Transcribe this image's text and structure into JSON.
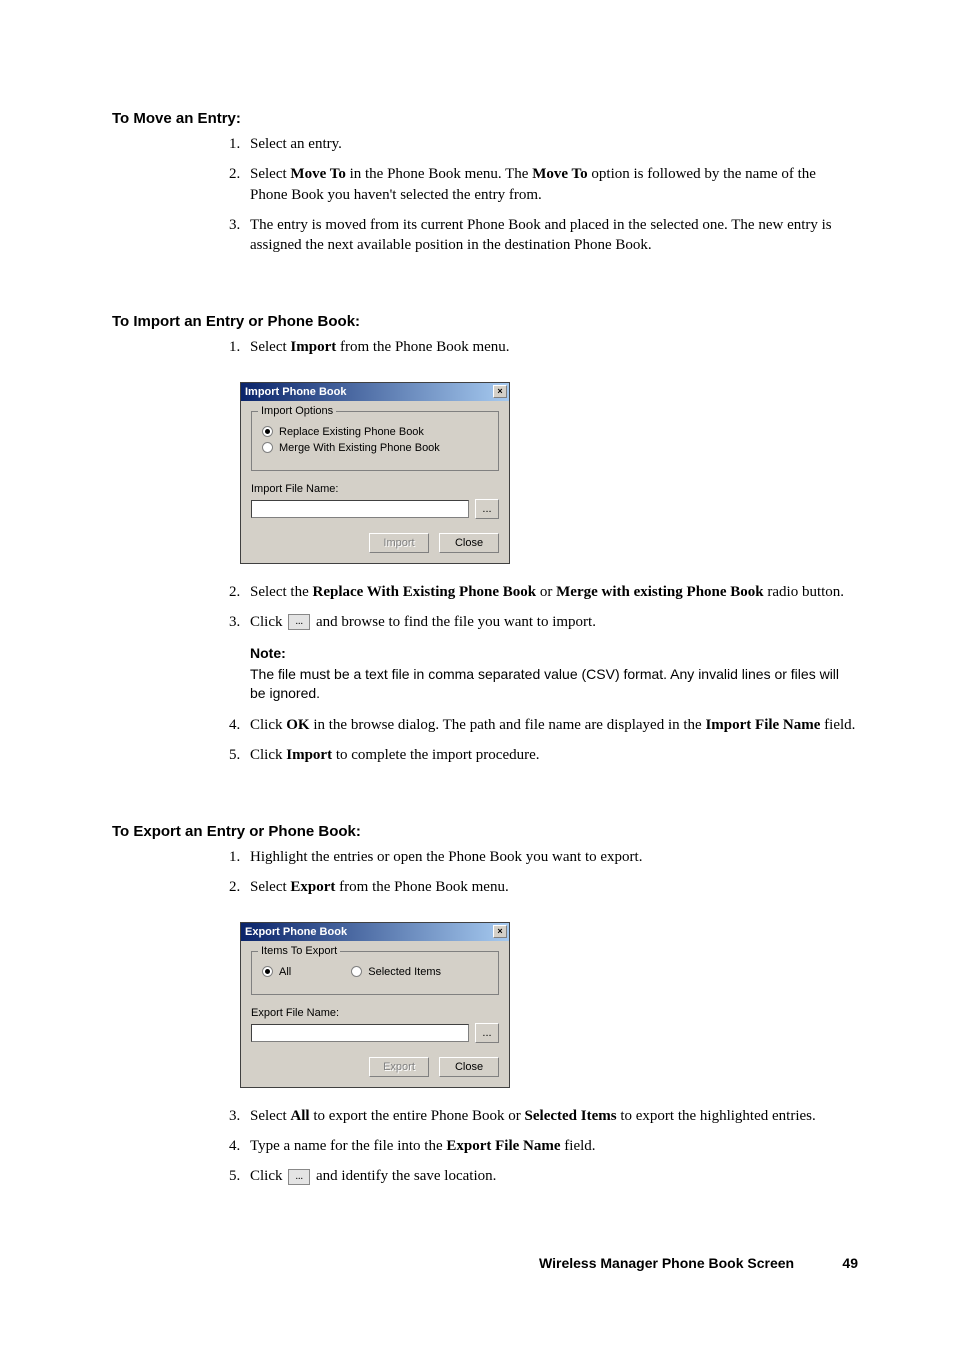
{
  "sections": {
    "move": {
      "heading": "To Move an Entry:",
      "step1": "Select an entry.",
      "step2_pre": "Select ",
      "step2_bold1": "Move To",
      "step2_mid": " in the Phone Book menu. The ",
      "step2_bold2": "Move To",
      "step2_post": " option is followed by the name of the Phone Book you haven't selected the entry from.",
      "step3": "The entry is moved from its current Phone Book and placed in the selected one. The new entry is assigned the next available position in the destination Phone Book."
    },
    "import": {
      "heading": "To Import an Entry or Phone Book:",
      "step1_pre": "Select ",
      "step1_bold": "Import",
      "step1_post": " from the Phone Book menu.",
      "step2_pre": "Select the ",
      "step2_bold1": "Replace With Existing Phone Book",
      "step2_mid": " or ",
      "step2_bold2": "Merge with existing Phone Book",
      "step2_post": " radio button.",
      "step3_pre": "Click ",
      "step3_btn": "...",
      "step3_post": " and browse to find the file you want to import.",
      "note_title": "Note:",
      "note_text": "The file must be a text file in comma separated value (CSV) format. Any invalid lines or files will be ignored.",
      "step4_pre": "Click ",
      "step4_bold1": "OK",
      "step4_mid": " in the browse dialog. The path and file name are displayed in the ",
      "step4_bold2": "Import File Name",
      "step4_post": " field.",
      "step5_pre": "Click ",
      "step5_bold": "Import",
      "step5_post": " to complete the import procedure."
    },
    "export": {
      "heading": "To Export an Entry or Phone Book:",
      "step1": "Highlight the entries or open the Phone Book you want to export.",
      "step2_pre": "Select ",
      "step2_bold": "Export",
      "step2_post": " from the Phone Book menu.",
      "step3_pre": "Select ",
      "step3_bold1": "All",
      "step3_mid": " to export the entire Phone Book or ",
      "step3_bold2": "Selected Items",
      "step3_post": " to export the highlighted entries.",
      "step4_pre": "Type a name for the file into the ",
      "step4_bold": "Export File Name",
      "step4_post": " field.",
      "step5_pre": "Click ",
      "step5_btn": "...",
      "step5_post": " and identify the save location."
    }
  },
  "dialogs": {
    "import": {
      "title": "Import Phone Book",
      "close_glyph": "×",
      "fieldset_legend": "Import Options",
      "radio_replace": "Replace Existing Phone Book",
      "radio_merge": "Merge With Existing Phone Book",
      "file_label": "Import File Name:",
      "browse_btn": "...",
      "import_btn": "Import",
      "close_btn": "Close",
      "titlebar_gradient_from": "#0a246a",
      "titlebar_gradient_to": "#a6caf0",
      "dialog_bg": "#d4d0c8"
    },
    "export": {
      "title": "Export Phone Book",
      "close_glyph": "×",
      "fieldset_legend": "Items To Export",
      "radio_all": "All",
      "radio_selected": "Selected Items",
      "file_label": "Export File Name:",
      "browse_btn": "...",
      "export_btn": "Export",
      "close_btn": "Close"
    }
  },
  "footer": {
    "title": "Wireless Manager Phone Book Screen",
    "page": "49"
  }
}
